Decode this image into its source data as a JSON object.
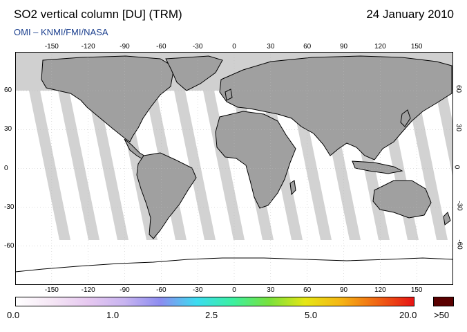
{
  "header": {
    "title": "SO2 vertical column [DU] (TRM)",
    "date": "24 January 2010",
    "source": "OMI  –  KNMI/FMI/NASA"
  },
  "map": {
    "lon_ticks": [
      "-150",
      "-120",
      "-90",
      "-60",
      "-30",
      "0",
      "30",
      "60",
      "90",
      "120",
      "150"
    ],
    "lat_ticks": [
      "60",
      "30",
      "0",
      "-30",
      "-60"
    ],
    "colors": {
      "polar_night": "#d0d0d0",
      "land": "#a0a0a0",
      "swath_gap": "#d2d2d2",
      "swath_gap_land": "#8c8c8c",
      "coastline": "#000000"
    }
  },
  "colorbar": {
    "labels": [
      "0.0",
      "1.0",
      "2.5",
      "5.0",
      "20.0"
    ],
    "overflow_label": ">50",
    "overflow_color": "#5a0000",
    "gradient": [
      "#ffffff",
      "#f5e6f5",
      "#e6c8f0",
      "#c8b4f0",
      "#8c8cf0",
      "#3cdcf0",
      "#3cf0a0",
      "#78e13c",
      "#e6e614",
      "#f5b414",
      "#f06414",
      "#e61414"
    ]
  }
}
